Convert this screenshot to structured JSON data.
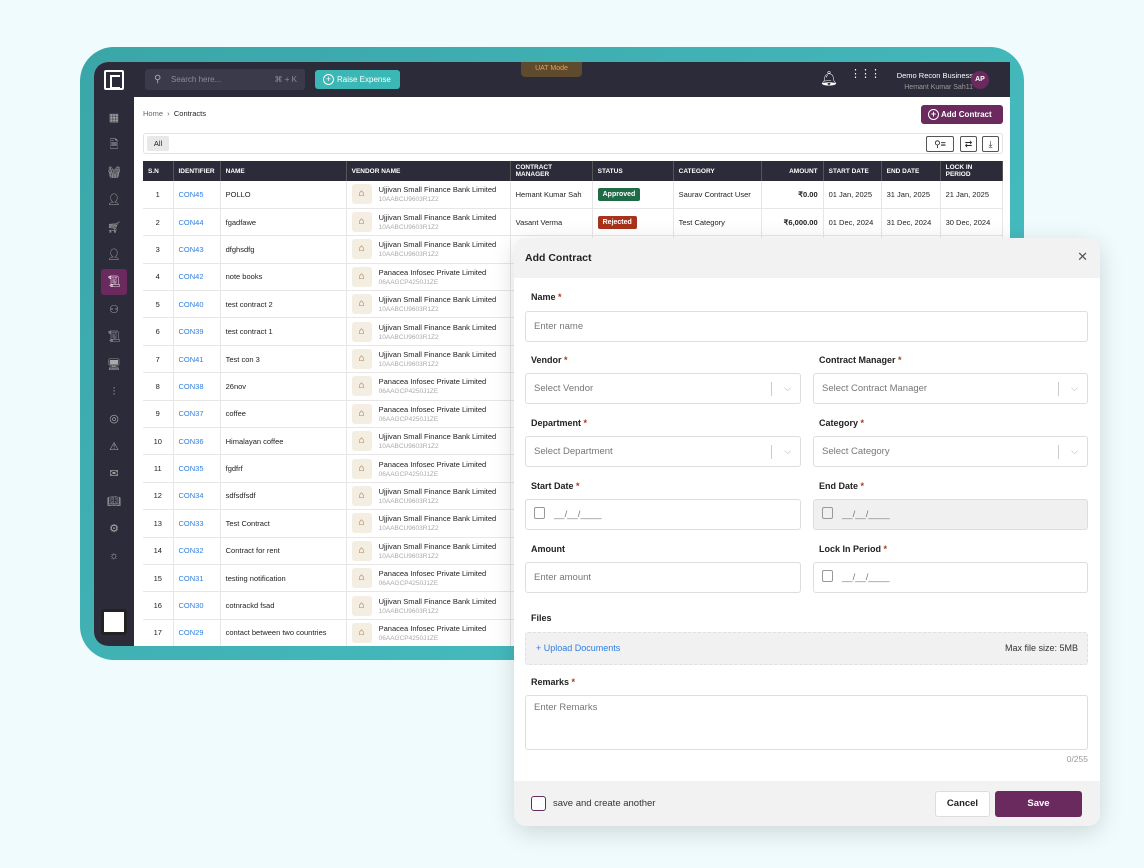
{
  "topbar": {
    "search_placeholder": "Search here...",
    "shortcut": "⌘ + K",
    "raise_expense": "Raise Expense",
    "mode_badge": "UAT Mode",
    "business": "Demo Recon Business",
    "user": "Hemant Kumar Sah11",
    "avatar": "AP"
  },
  "sidebar": {
    "items": [
      "dashboard",
      "document",
      "basket",
      "user-settings",
      "cart",
      "user-shield",
      "contracts",
      "org-chart",
      "scroll",
      "monitor",
      "sliders",
      "target",
      "alert",
      "mail",
      "book",
      "settings",
      "sun"
    ],
    "active": "contracts"
  },
  "breadcrumb": {
    "home": "Home",
    "current": "Contracts"
  },
  "add_contract": "Add Contract",
  "filter_tab": "All",
  "table": {
    "headers": [
      "S.N",
      "IDENTIFIER",
      "NAME",
      "VENDOR NAME",
      "CONTRACT MANAGER",
      "STATUS",
      "CATEGORY",
      "AMOUNT",
      "START DATE",
      "END DATE",
      "LOCK IN PERIOD"
    ],
    "rows": [
      {
        "sn": "1",
        "id": "CON45",
        "name": "POLLO",
        "vendor": "Ujjivan Small Finance Bank Limited",
        "gst": "10AABCU9603R1Z2",
        "manager": "Hemant Kumar Sah",
        "status": "Approved",
        "category": "Saurav Contract User",
        "amount": "₹0.00",
        "start": "01 Jan, 2025",
        "end": "31 Jan, 2025",
        "lock": "21 Jan, 2025"
      },
      {
        "sn": "2",
        "id": "CON44",
        "name": "fgadfawe",
        "vendor": "Ujjivan Small Finance Bank Limited",
        "gst": "10AABCU9603R1Z2",
        "manager": "Vasant Verma",
        "status": "Rejected",
        "category": "Test Category",
        "amount": "₹6,000.00",
        "start": "01 Dec, 2024",
        "end": "31 Dec, 2024",
        "lock": "30 Dec, 2024"
      },
      {
        "sn": "3",
        "id": "CON43",
        "name": "dfghsdfg",
        "vendor": "Ujjivan Small Finance Bank Limited",
        "gst": "10AABCU9603R1Z2"
      },
      {
        "sn": "4",
        "id": "CON42",
        "name": "note books",
        "vendor": "Panacea Infosec Private Limited",
        "gst": "06AAGCP4250J1ZE"
      },
      {
        "sn": "5",
        "id": "CON40",
        "name": "test contract 2",
        "vendor": "Ujjivan Small Finance Bank Limited",
        "gst": "10AABCU9603R1Z2"
      },
      {
        "sn": "6",
        "id": "CON39",
        "name": "test contract 1",
        "vendor": "Ujjivan Small Finance Bank Limited",
        "gst": "10AABCU9603R1Z2"
      },
      {
        "sn": "7",
        "id": "CON41",
        "name": "Test con 3",
        "vendor": "Ujjivan Small Finance Bank Limited",
        "gst": "10AABCU9603R1Z2"
      },
      {
        "sn": "8",
        "id": "CON38",
        "name": "26nov",
        "vendor": "Panacea Infosec Private Limited",
        "gst": "06AAGCP4250J1ZE"
      },
      {
        "sn": "9",
        "id": "CON37",
        "name": "coffee",
        "vendor": "Panacea Infosec Private Limited",
        "gst": "06AAGCP4250J1ZE"
      },
      {
        "sn": "10",
        "id": "CON36",
        "name": "Himalayan coffee",
        "vendor": "Ujjivan Small Finance Bank Limited",
        "gst": "10AABCU9603R1Z2"
      },
      {
        "sn": "11",
        "id": "CON35",
        "name": "fgdfrf",
        "vendor": "Panacea Infosec Private Limited",
        "gst": "06AAGCP4250J1ZE"
      },
      {
        "sn": "12",
        "id": "CON34",
        "name": "sdfsdfsdf",
        "vendor": "Ujjivan Small Finance Bank Limited",
        "gst": "10AABCU9603R1Z2"
      },
      {
        "sn": "13",
        "id": "CON33",
        "name": "Test Contract",
        "vendor": "Ujjivan Small Finance Bank Limited",
        "gst": "10AABCU9603R1Z2"
      },
      {
        "sn": "14",
        "id": "CON32",
        "name": "Contract for rent",
        "vendor": "Ujjivan Small Finance Bank Limited",
        "gst": "10AABCU9603R1Z2"
      },
      {
        "sn": "15",
        "id": "CON31",
        "name": "testing notification",
        "vendor": "Panacea Infosec Private Limited",
        "gst": "06AAGCP4250J1ZE"
      },
      {
        "sn": "16",
        "id": "CON30",
        "name": "cotnrackd fsad",
        "vendor": "Ujjivan Small Finance Bank Limited",
        "gst": "10AABCU9603R1Z2"
      },
      {
        "sn": "17",
        "id": "CON29",
        "name": "contact between two countries",
        "vendor": "Panacea Infosec Private Limited",
        "gst": "06AAGCP4250J1ZE"
      }
    ],
    "status_colors": {
      "Approved": "#1e6b46",
      "Rejected": "#a8321c"
    }
  },
  "modal": {
    "title": "Add Contract",
    "name_label": "Name",
    "name_placeholder": "Enter name",
    "vendor_label": "Vendor",
    "vendor_placeholder": "Select Vendor",
    "manager_label": "Contract Manager",
    "manager_placeholder": "Select Contract Manager",
    "department_label": "Department",
    "department_placeholder": "Select Department",
    "category_label": "Category",
    "category_placeholder": "Select Category",
    "start_label": "Start Date",
    "end_label": "End Date",
    "date_placeholder": "__/__/____",
    "amount_label": "Amount",
    "amount_placeholder": "Enter amount",
    "lock_label": "Lock In Period",
    "files_label": "Files",
    "upload": "+ Upload Documents",
    "max_size": "Max file size: 5MB",
    "remarks_label": "Remarks",
    "remarks_placeholder": "Enter Remarks",
    "remarks_count": "0/255",
    "save_another": "save and create another",
    "cancel": "Cancel",
    "save": "Save"
  },
  "colors": {
    "brand": "#6b2a5e",
    "accent": "#3bb7b6",
    "dark": "#2c2b3a",
    "link": "#2d7fe0"
  }
}
